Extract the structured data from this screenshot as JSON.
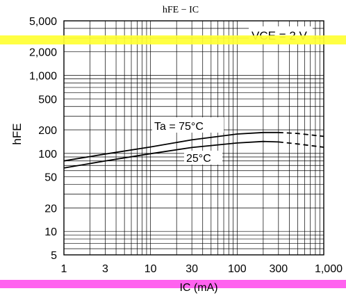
{
  "chart_data": {
    "type": "line",
    "title": "hFE − IC",
    "xlabel": "IC  (mA)",
    "ylabel": "hFE",
    "condition": "VCE = 2 V",
    "x_scale": "log",
    "y_scale": "log",
    "xlim": [
      1,
      1000
    ],
    "ylim": [
      5,
      5000
    ],
    "x_ticks": [
      "1",
      "3",
      "10",
      "30",
      "100",
      "300",
      "1,000"
    ],
    "x_tick_values": [
      1,
      3,
      10,
      30,
      100,
      300,
      1000
    ],
    "y_ticks": [
      "5,000",
      "2,000",
      "1,000",
      "500",
      "200",
      "100",
      "50",
      "20",
      "10",
      "5"
    ],
    "y_tick_values": [
      5000,
      2000,
      1000,
      500,
      200,
      100,
      50,
      20,
      10,
      5
    ],
    "grid": true,
    "series": [
      {
        "name": "Ta = 75°C",
        "x": [
          1,
          3,
          10,
          30,
          100,
          200,
          300,
          500,
          1000
        ],
        "y": [
          80,
          98,
          121,
          149,
          177,
          185,
          185,
          180,
          165
        ],
        "dashed_from": 300
      },
      {
        "name": "25°C",
        "x": [
          1,
          3,
          10,
          30,
          100,
          200,
          300,
          500,
          1000
        ],
        "y": [
          65,
          80,
          99,
          119,
          136,
          142,
          140,
          132,
          120
        ],
        "dashed_from": 300
      }
    ],
    "color": "#000000",
    "overlay_bands": [
      "#ffff33",
      "#ff55ee"
    ]
  }
}
